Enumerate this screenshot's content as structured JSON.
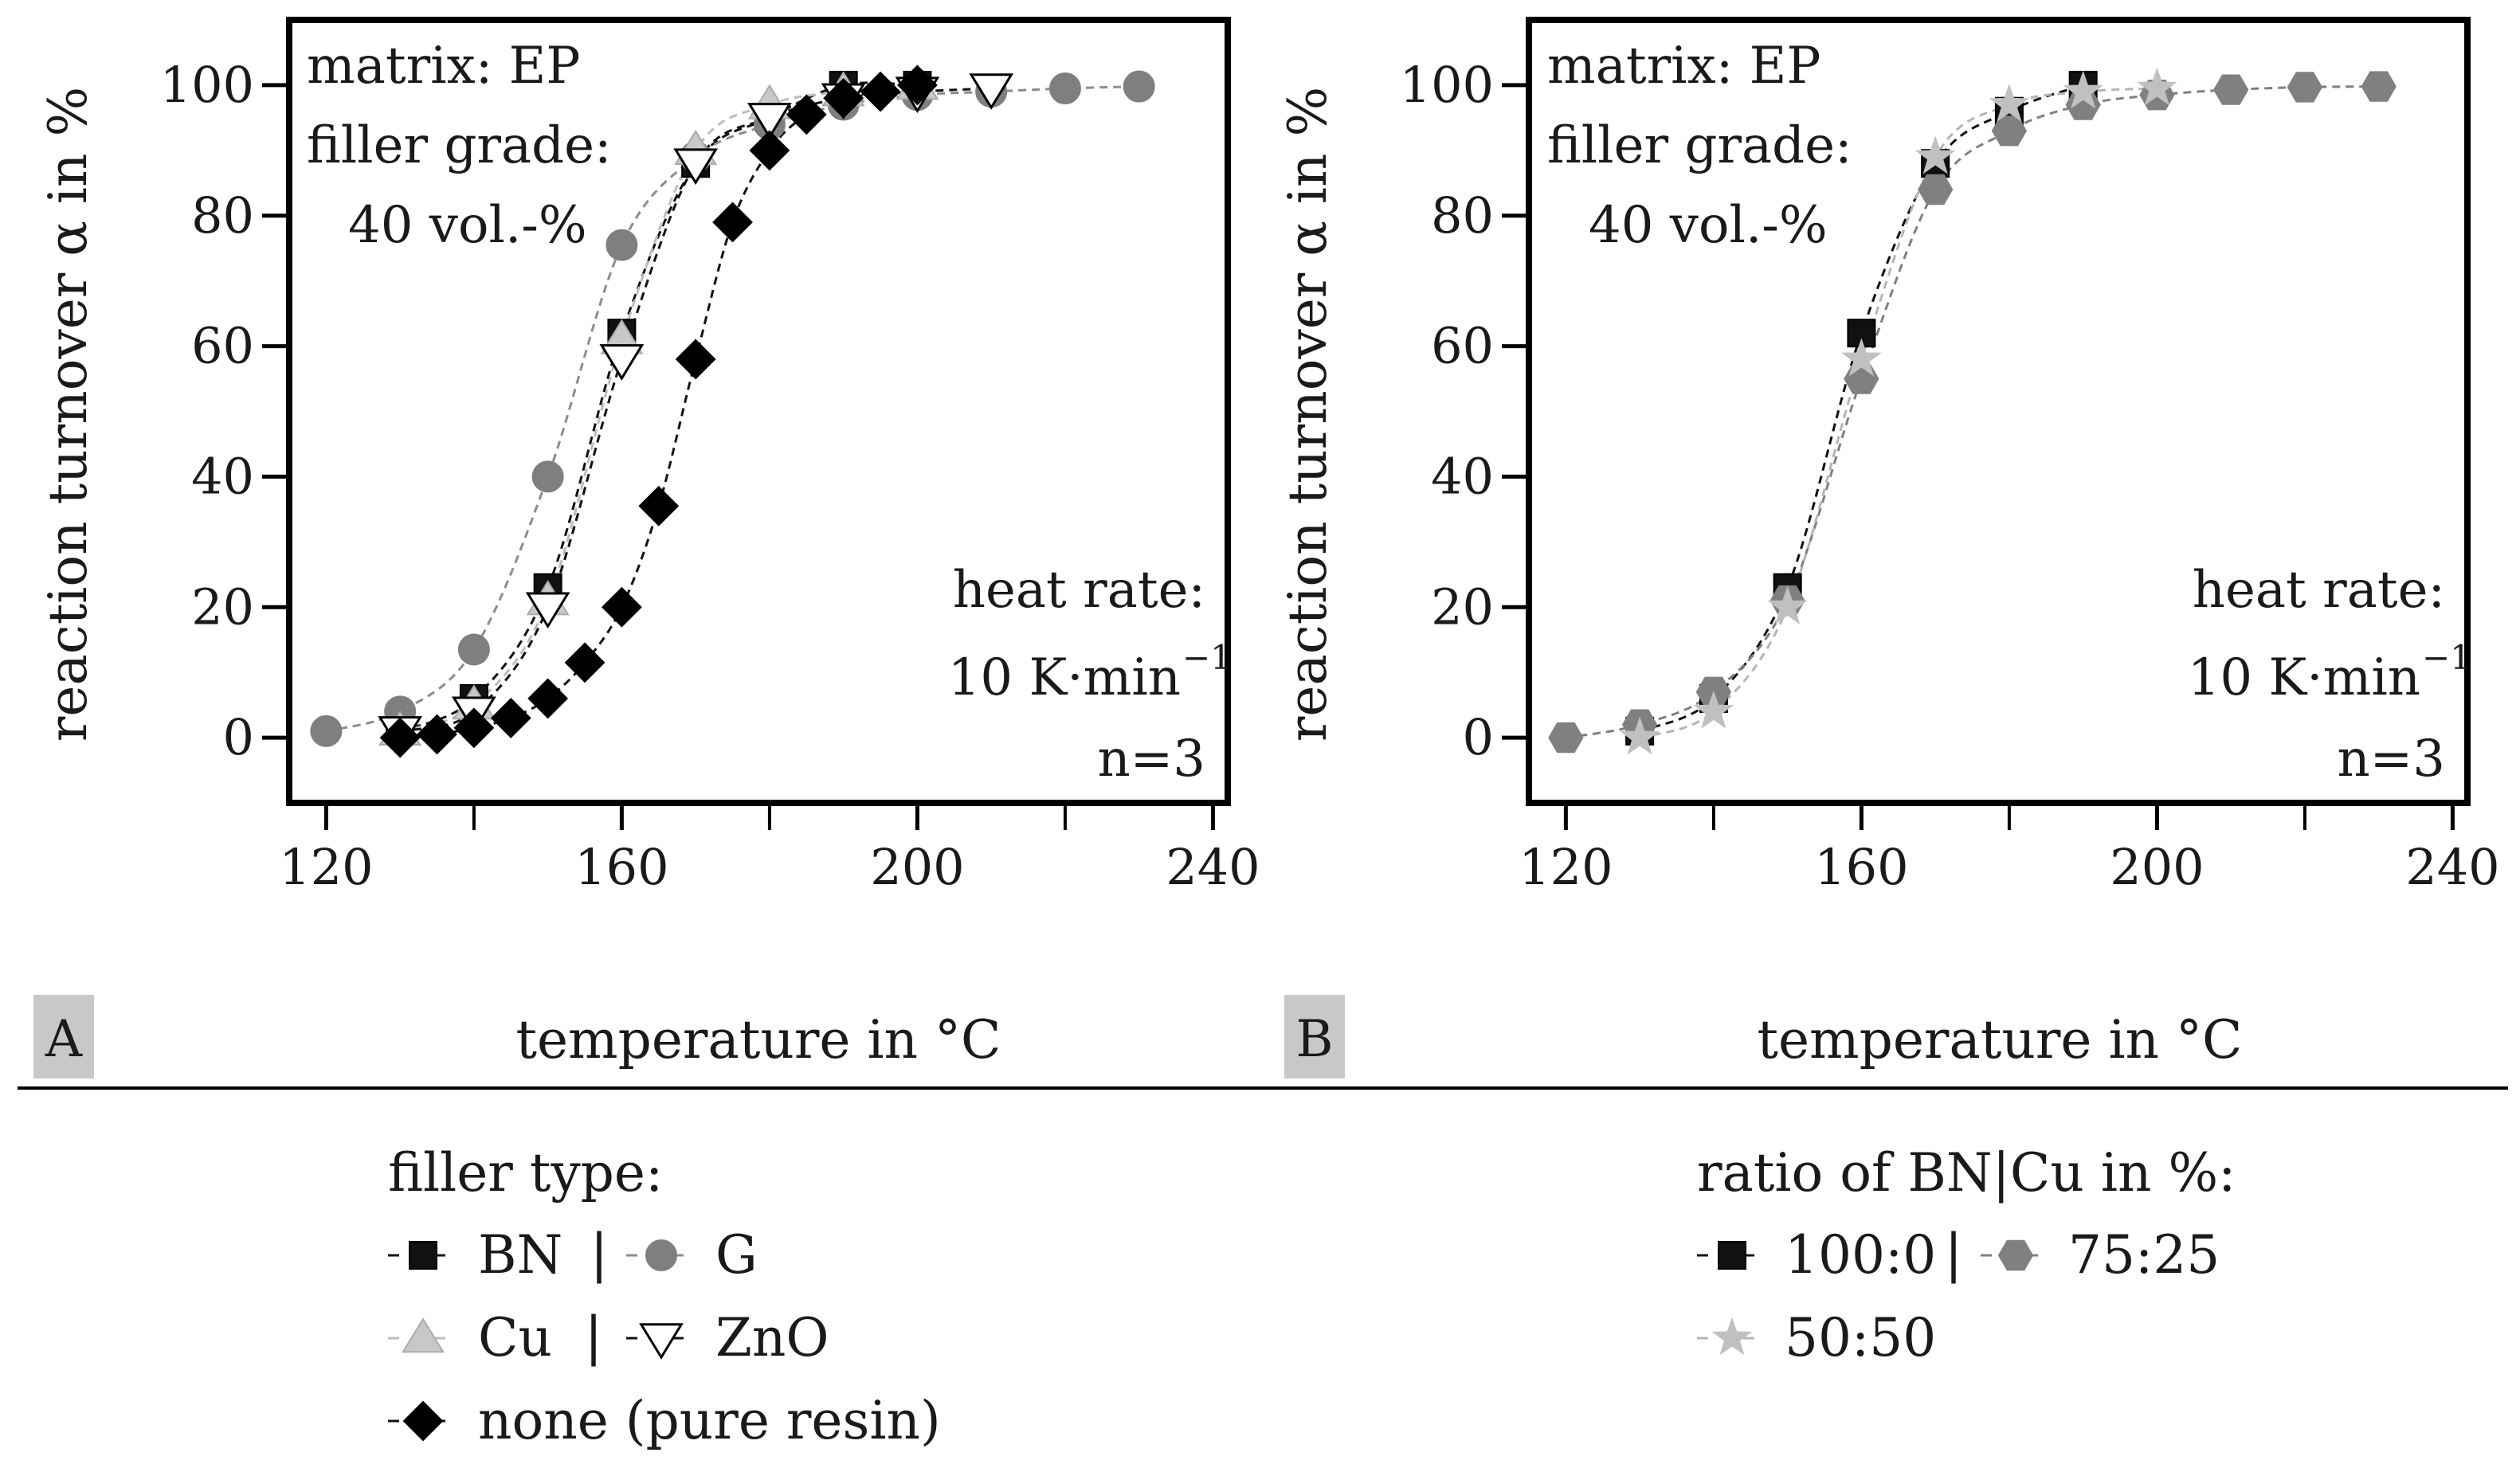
{
  "chart_data": [
    {
      "panel": "A",
      "type": "scatter",
      "xlabel": "temperature in °C",
      "ylabel": "reaction turnover α in %",
      "xlim": [
        115,
        242
      ],
      "ylim": [
        -10,
        110
      ],
      "xticks": [
        120,
        160,
        200,
        240
      ],
      "yticks": [
        0,
        20,
        40,
        60,
        80,
        100
      ],
      "xminor": [
        140,
        180,
        220
      ],
      "annotations_topleft": [
        "matrix: EP",
        "filler grade:",
        "40 vol.-%"
      ],
      "annotations_bottomright": [
        "heat rate:",
        "10 K·min",
        "n=3"
      ],
      "heat_rate_exponent": "−1",
      "series": [
        {
          "name": "BN",
          "marker": "square",
          "color": "#111111",
          "line": "#111111",
          "x": [
            130,
            140,
            150,
            160,
            170,
            180,
            190,
            200
          ],
          "y": [
            1,
            6,
            23,
            62,
            88,
            95,
            100,
            100
          ]
        },
        {
          "name": "G",
          "marker": "circle",
          "color": "#7f7f7f",
          "line": "#8c8c8c",
          "x": [
            120,
            130,
            140,
            150,
            160,
            170,
            180,
            190,
            200,
            210,
            220,
            230
          ],
          "y": [
            1,
            4,
            13.5,
            40,
            75.5,
            89,
            94,
            97,
            98.5,
            99,
            99.5,
            99.8
          ]
        },
        {
          "name": "Cu",
          "marker": "triangle-up",
          "color": "#c8c8c8",
          "line": "#bdbdbd",
          "x": [
            130,
            140,
            150,
            160,
            170,
            180,
            190,
            200
          ],
          "y": [
            1,
            5,
            21,
            61,
            90,
            97,
            99,
            100
          ]
        },
        {
          "name": "ZnO",
          "marker": "triangle-down",
          "color": "#ffffff",
          "line": "#111111",
          "x": [
            130,
            140,
            150,
            160,
            170,
            180,
            190,
            200,
            210
          ],
          "y": [
            1,
            4,
            20,
            58,
            88,
            95,
            98,
            99,
            99.5
          ]
        },
        {
          "name": "none (pure resin)",
          "marker": "diamond",
          "color": "#000000",
          "line": "#111111",
          "x": [
            130,
            135,
            140,
            145,
            150,
            155,
            160,
            165,
            170,
            175,
            180,
            185,
            190,
            195,
            200
          ],
          "y": [
            0,
            0.5,
            1.5,
            3,
            6,
            11.5,
            20,
            35.5,
            58,
            79,
            90,
            95.5,
            98,
            99,
            100
          ]
        }
      ]
    },
    {
      "panel": "B",
      "type": "scatter",
      "xlabel": "temperature in °C",
      "ylabel": "reaction turnover α in %",
      "xlim": [
        115,
        242
      ],
      "ylim": [
        -10,
        110
      ],
      "xticks": [
        120,
        160,
        200,
        240
      ],
      "yticks": [
        0,
        20,
        40,
        60,
        80,
        100
      ],
      "xminor": [
        140,
        180,
        220
      ],
      "annotations_topleft": [
        "matrix: EP",
        "filler grade:",
        "40 vol.-%"
      ],
      "annotations_bottomright": [
        "heat rate:",
        "10 K·min",
        "n=3"
      ],
      "heat_rate_exponent": "−1",
      "series": [
        {
          "name": "100:0",
          "marker": "square",
          "color": "#111111",
          "line": "#111111",
          "x": [
            130,
            140,
            150,
            160,
            170,
            180,
            190
          ],
          "y": [
            1,
            6,
            23,
            62,
            88,
            96,
            100
          ]
        },
        {
          "name": "75:25",
          "marker": "hexagon",
          "color": "#808080",
          "line": "#808080",
          "x": [
            120,
            130,
            140,
            150,
            160,
            170,
            180,
            190,
            200,
            210,
            220,
            230
          ],
          "y": [
            0,
            2,
            7,
            21,
            55,
            84,
            93,
            97,
            98.5,
            99.3,
            99.7,
            99.8
          ]
        },
        {
          "name": "50:50",
          "marker": "star",
          "color": "#c0c0c0",
          "line": "#b5b5b5",
          "x": [
            130,
            140,
            150,
            160,
            170,
            180,
            190,
            200
          ],
          "y": [
            0,
            4,
            20,
            58,
            89,
            97,
            99,
            99.5
          ]
        }
      ]
    }
  ],
  "panel_labels": [
    "A",
    "B"
  ],
  "legend_left": {
    "title": "filler type:",
    "separator": "|",
    "rows": [
      [
        "BN",
        "G"
      ],
      [
        "Cu",
        "ZnO"
      ],
      [
        "none (pure resin)"
      ]
    ]
  },
  "legend_right": {
    "title": "ratio of BN|Cu in %:",
    "separator": "|",
    "rows": [
      [
        "100:0",
        "75:25"
      ],
      [
        "50:50"
      ]
    ]
  }
}
